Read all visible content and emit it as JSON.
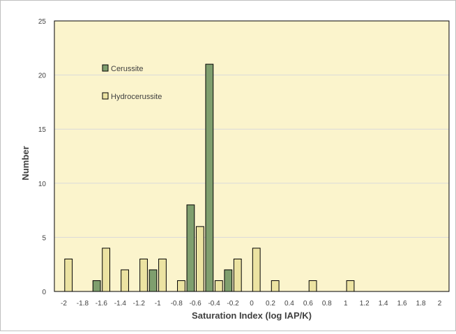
{
  "chart_data": {
    "type": "bar",
    "title": "",
    "xlabel": "Saturation Index (log IAP/K)",
    "ylabel": "Number",
    "xlim": [
      -2.1,
      2.1
    ],
    "ylim": [
      0,
      25
    ],
    "y_ticks": [
      "0",
      "5",
      "10",
      "15",
      "20",
      "25"
    ],
    "x_ticks": [
      "-2",
      "-1.8",
      "-1.6",
      "-1.4",
      "-1.2",
      "-1",
      "-0.8",
      "-0.6",
      "-0.4",
      "-0.2",
      "0",
      "0.2",
      "0.4",
      "0.6",
      "0.8",
      "1",
      "1.2",
      "1.4",
      "1.6",
      "1.8",
      "2"
    ],
    "grid": true,
    "legend_position": "top-left",
    "series": [
      {
        "name": "Cerussite",
        "color": "#7f9f6e",
        "x": [
          -1.65,
          -1.05,
          -0.65,
          -0.45,
          -0.25
        ],
        "values": [
          1,
          2,
          8,
          21,
          2
        ]
      },
      {
        "name": "Hydrocerussite",
        "color": "#ece3a2",
        "x": [
          -1.95,
          -1.55,
          -1.35,
          -1.15,
          -0.95,
          -0.75,
          -0.55,
          -0.35,
          -0.15,
          0.05,
          0.25,
          0.65,
          1.05
        ],
        "values": [
          3,
          4,
          2,
          3,
          3,
          1,
          6,
          1,
          3,
          4,
          1,
          1,
          1
        ]
      }
    ]
  }
}
